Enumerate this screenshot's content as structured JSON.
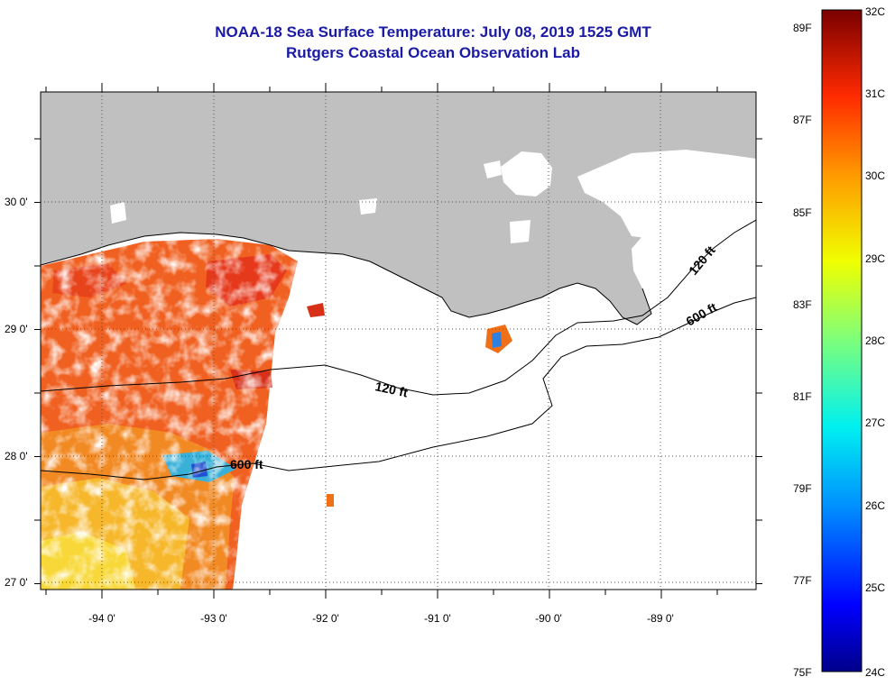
{
  "header": {
    "title": "NOAA-18 Sea Surface Temperature:  July 08, 2019 1525 GMT",
    "subtitle": "Rutgers Coastal Ocean Observation Lab"
  },
  "map": {
    "region": "Northern Gulf of Mexico",
    "lon_range": [
      -94.6,
      -88.25
    ],
    "lat_range": [
      26.95,
      30.85
    ],
    "lon_ticks": [
      {
        "value": -94,
        "label": "-94 0'"
      },
      {
        "value": -93,
        "label": "-93 0'"
      },
      {
        "value": -92,
        "label": "-92 0'"
      },
      {
        "value": -91,
        "label": "-91 0'"
      },
      {
        "value": -90,
        "label": "-90 0'"
      },
      {
        "value": -89,
        "label": "-89 0'"
      }
    ],
    "lat_ticks": [
      {
        "value": 30,
        "label": "30 0'"
      },
      {
        "value": 29,
        "label": "29 0'"
      },
      {
        "value": 28,
        "label": "28 0'"
      },
      {
        "value": 27,
        "label": "27 0'"
      }
    ],
    "grid": "dotted",
    "contours": [
      {
        "label": "120 ft"
      },
      {
        "label": "120 ft"
      },
      {
        "label": "600 ft"
      },
      {
        "label": "600 ft"
      }
    ],
    "colors": {
      "land": "#c0c0c0",
      "ocean_no_data": "#ffffff",
      "warm_sst": "#f06020",
      "mid_sst": "#f8b020",
      "contour": "#000000"
    }
  },
  "colorbar": {
    "fahrenheit_labels": [
      "89F",
      "87F",
      "85F",
      "83F",
      "81F",
      "79F",
      "77F",
      "75F"
    ],
    "celsius_labels": [
      "32C",
      "31C",
      "30C",
      "29C",
      "28C",
      "27C",
      "26C",
      "25C",
      "24C"
    ],
    "min_c": 24,
    "max_c": 32
  }
}
